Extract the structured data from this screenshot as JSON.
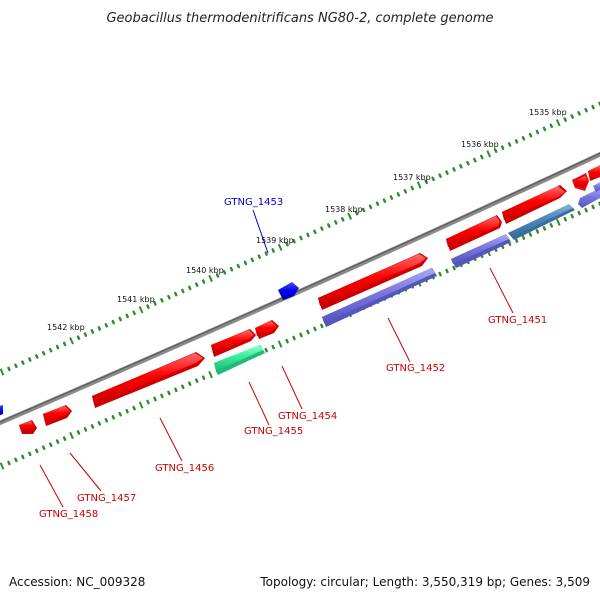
{
  "title": "Geobacillus thermodenitrificans NG80-2, complete genome",
  "footer": {
    "accession": "Accession: NC_009328",
    "summary": "Topology: circular; Length: 3,550,319 bp; Genes: 3,509"
  },
  "colors": {
    "backbone": "#777777",
    "scale_ticks": "#2e8b2e",
    "forward_cds": "#ff0000",
    "reverse_cds": "#7777dd",
    "reverse_cds_alt": "#4f86b8",
    "rna_feature": "#33ee99",
    "other_forward": "#0000ee",
    "label_red": "#cc0000",
    "label_blue": "#0000cc"
  },
  "scale_labels": [
    "1535 kbp",
    "1536 kbp",
    "1537 kbp",
    "1538 kbp",
    "1539 kbp",
    "1540 kbp",
    "1541 kbp",
    "1542 kbp"
  ],
  "gene_labels": [
    {
      "name": "GTNG_1451",
      "color": "red"
    },
    {
      "name": "GTNG_1452",
      "color": "red"
    },
    {
      "name": "GTNG_1453",
      "color": "blue"
    },
    {
      "name": "GTNG_1454",
      "color": "red"
    },
    {
      "name": "GTNG_1455",
      "color": "red"
    },
    {
      "name": "GTNG_1456",
      "color": "red"
    },
    {
      "name": "GTNG_1457",
      "color": "red"
    },
    {
      "name": "GTNG_1458",
      "color": "red"
    }
  ]
}
